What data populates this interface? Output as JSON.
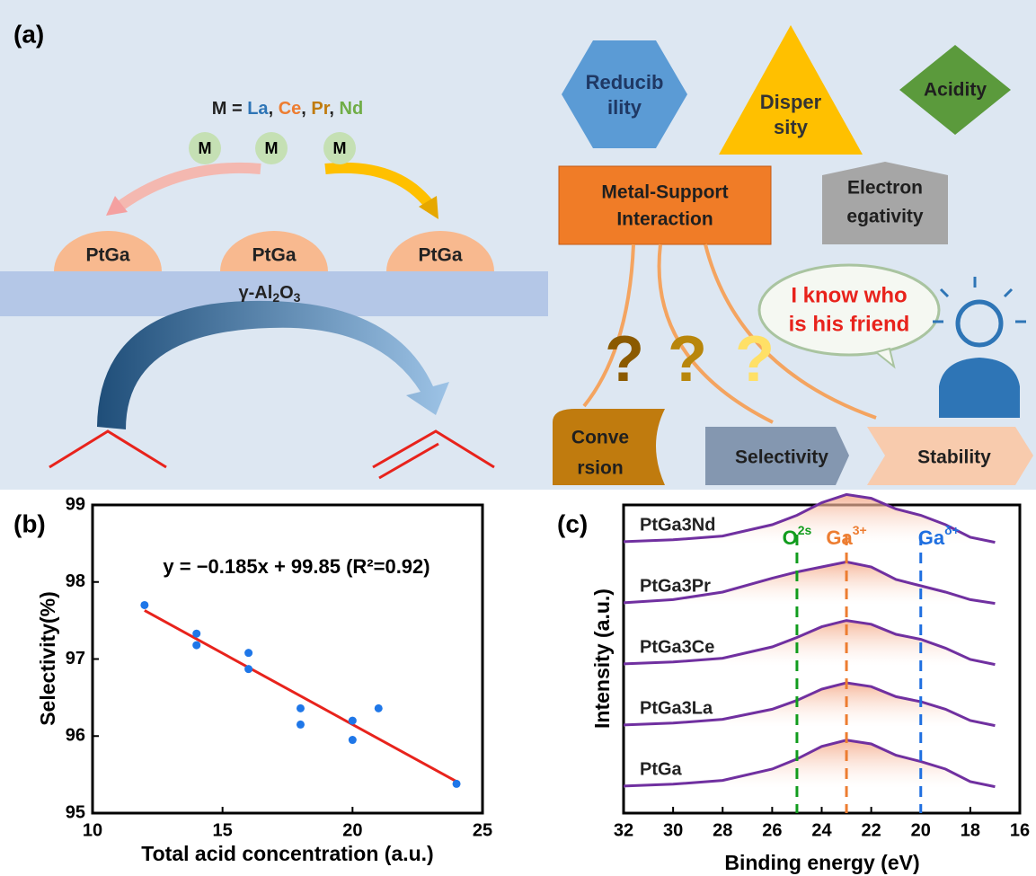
{
  "panel_a": {
    "label": "(a)",
    "metal_formula": [
      {
        "text": "M = ",
        "color": "#222222"
      },
      {
        "text": "La",
        "color": "#2e75b6"
      },
      {
        "text": ", ",
        "color": "#222222"
      },
      {
        "text": "Ce",
        "color": "#ed7d31"
      },
      {
        "text": ", ",
        "color": "#222222"
      },
      {
        "text": "Pr",
        "color": "#c07b0e"
      },
      {
        "text": ", ",
        "color": "#222222"
      },
      {
        "text": "Nd",
        "color": "#70ad47"
      }
    ],
    "metals": [
      "M",
      "M",
      "M"
    ],
    "particles": [
      "PtGa",
      "PtGa",
      "PtGa"
    ],
    "support": [
      {
        "text": "γ-Al"
      },
      {
        "text": "2",
        "sub": true
      },
      {
        "text": "O"
      },
      {
        "text": "3",
        "sub": true
      }
    ],
    "reducibility": [
      "Reducib",
      "ility"
    ],
    "dispersity": [
      "Disper",
      "sity"
    ],
    "acidity": "Acidity",
    "msi": [
      "Metal-Support",
      "Interaction"
    ],
    "electronegativity": [
      "Electron",
      "egativity"
    ],
    "bubble": [
      "I know who",
      "is his friend"
    ],
    "questions": [
      "?",
      "?",
      "?"
    ],
    "conversion": [
      "Conve",
      "rsion"
    ],
    "selectivity": "Selectivity",
    "stability": "Stability"
  },
  "panel_b": {
    "label": "(b)"
  },
  "panel_c": {
    "label": "(c)"
  },
  "chart_data": [
    {
      "type": "scatter",
      "xlabel": "Total acid concentration (a.u.)",
      "ylabel": "Selectivity(%)",
      "equation": "y = −0.185x + 99.85 (R²=0.92)",
      "x": [
        12,
        14,
        14,
        16,
        16,
        18,
        18,
        20,
        20,
        21,
        24
      ],
      "values": [
        97.7,
        97.33,
        97.18,
        97.08,
        96.87,
        96.36,
        96.15,
        96.2,
        95.95,
        96.36,
        95.38
      ],
      "color": "#1f77e8",
      "fit_x": [
        12,
        24
      ],
      "fit_values": [
        97.63,
        95.41
      ],
      "fit_color": "#e8231c",
      "xlim": [
        10,
        25
      ],
      "xticks": [
        10,
        15,
        20,
        25
      ],
      "ylim": [
        95,
        99
      ],
      "yticks": [
        95,
        96,
        97,
        98,
        99
      ]
    },
    {
      "type": "line",
      "xlabel": "Binding energy (eV)",
      "ylabel": "Intensity (a.u.)",
      "x": [
        32,
        30,
        28,
        26,
        25,
        24,
        23,
        22,
        21,
        20,
        19,
        18,
        17
      ],
      "series": [
        {
          "name": "PtGa3Nd",
          "color": "#7030a0",
          "values": [
            0.03,
            0.06,
            0.12,
            0.3,
            0.45,
            0.65,
            0.78,
            0.72,
            0.55,
            0.45,
            0.3,
            0.1,
            0.02
          ]
        },
        {
          "name": "PtGa3Pr",
          "color": "#7030a0",
          "values": [
            0.03,
            0.08,
            0.2,
            0.42,
            0.52,
            0.6,
            0.68,
            0.6,
            0.4,
            0.3,
            0.2,
            0.08,
            0.02
          ]
        },
        {
          "name": "PtGa3Ce",
          "color": "#7030a0",
          "values": [
            0.03,
            0.06,
            0.12,
            0.3,
            0.45,
            0.62,
            0.72,
            0.66,
            0.5,
            0.42,
            0.28,
            0.1,
            0.02
          ]
        },
        {
          "name": "PtGa3La",
          "color": "#7030a0",
          "values": [
            0.03,
            0.06,
            0.12,
            0.28,
            0.42,
            0.6,
            0.7,
            0.64,
            0.48,
            0.4,
            0.28,
            0.1,
            0.02
          ]
        },
        {
          "name": "PtGa",
          "color": "#7030a0",
          "values": [
            0.03,
            0.06,
            0.12,
            0.3,
            0.46,
            0.66,
            0.76,
            0.7,
            0.52,
            0.42,
            0.3,
            0.1,
            0.02
          ]
        }
      ],
      "ref_lines": [
        {
          "value": 25,
          "color": "#119c1d",
          "label": "O",
          "sup": "2s"
        },
        {
          "value": 23,
          "color": "#ed7d31",
          "label": "Ga",
          "sup": "3+"
        },
        {
          "value": 20,
          "color": "#1f6fe0",
          "label": "Ga",
          "sup": "δ+"
        }
      ],
      "xlim": [
        32,
        16
      ],
      "xticks": [
        32,
        30,
        28,
        26,
        24,
        22,
        20,
        18,
        16
      ]
    }
  ]
}
